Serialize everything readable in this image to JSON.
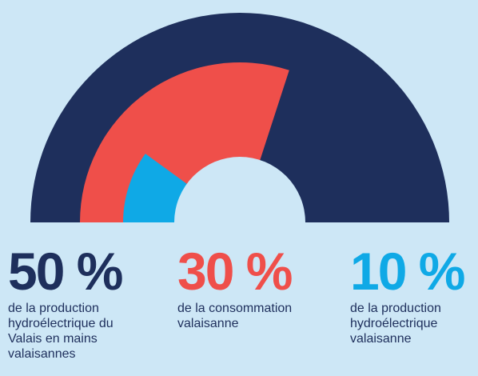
{
  "chart_data": {
    "type": "pie",
    "categories": [
      "de la production hydroélectrique du Valais en mains valaisannes",
      "de la consommation valaisanne",
      "de la production hydroélectrique valaisanne"
    ],
    "values": [
      50,
      30,
      10
    ],
    "value_labels": [
      "50 %",
      "30 %",
      "10 %"
    ],
    "colors": [
      "#1e2f5c",
      "#ef4f4a",
      "#0fa9e6"
    ]
  }
}
